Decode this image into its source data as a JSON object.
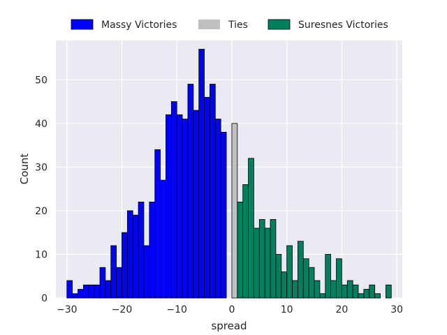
{
  "chart_data": {
    "type": "bar",
    "title": "",
    "xlabel": "spread",
    "ylabel": "Count",
    "xlim": [
      -32,
      31
    ],
    "ylim": [
      0,
      59
    ],
    "xticks": [
      -30,
      -20,
      -10,
      0,
      10,
      20,
      30
    ],
    "yticks": [
      0,
      10,
      20,
      30,
      40,
      50
    ],
    "grid": true,
    "legend_position": "top",
    "bin_width": 1,
    "series": [
      {
        "name": "Massy Victories",
        "color": "#0000ff",
        "x": [
          -30,
          -29,
          -28,
          -27,
          -26,
          -25,
          -24,
          -23,
          -22,
          -21,
          -20,
          -19,
          -18,
          -17,
          -16,
          -15,
          -14,
          -13,
          -12,
          -11,
          -10,
          -9,
          -8,
          -7,
          -6,
          -5,
          -4,
          -3,
          -2,
          -1
        ],
        "values": [
          4,
          1,
          2,
          3,
          3,
          3,
          7,
          4,
          12,
          7,
          15,
          20,
          19,
          22,
          12,
          22,
          34,
          27,
          42,
          45,
          42,
          41,
          49,
          43,
          57,
          46,
          49,
          41,
          38,
          0
        ]
      },
      {
        "name": "Ties",
        "color": "#c0c0c0",
        "x": [
          0
        ],
        "values": [
          40
        ]
      },
      {
        "name": "Suresnes Victories",
        "color": "#007f5f",
        "x": [
          1,
          2,
          3,
          4,
          5,
          6,
          7,
          8,
          9,
          10,
          11,
          12,
          13,
          14,
          15,
          16,
          17,
          18,
          19,
          20,
          21,
          22,
          23,
          24,
          25,
          26,
          27,
          28
        ],
        "values": [
          22,
          26,
          32,
          16,
          18,
          16,
          18,
          10,
          6,
          12,
          4,
          13,
          9,
          7,
          4,
          1,
          10,
          4,
          9,
          3,
          4,
          3,
          1,
          2,
          3,
          1,
          0,
          3
        ]
      }
    ]
  }
}
